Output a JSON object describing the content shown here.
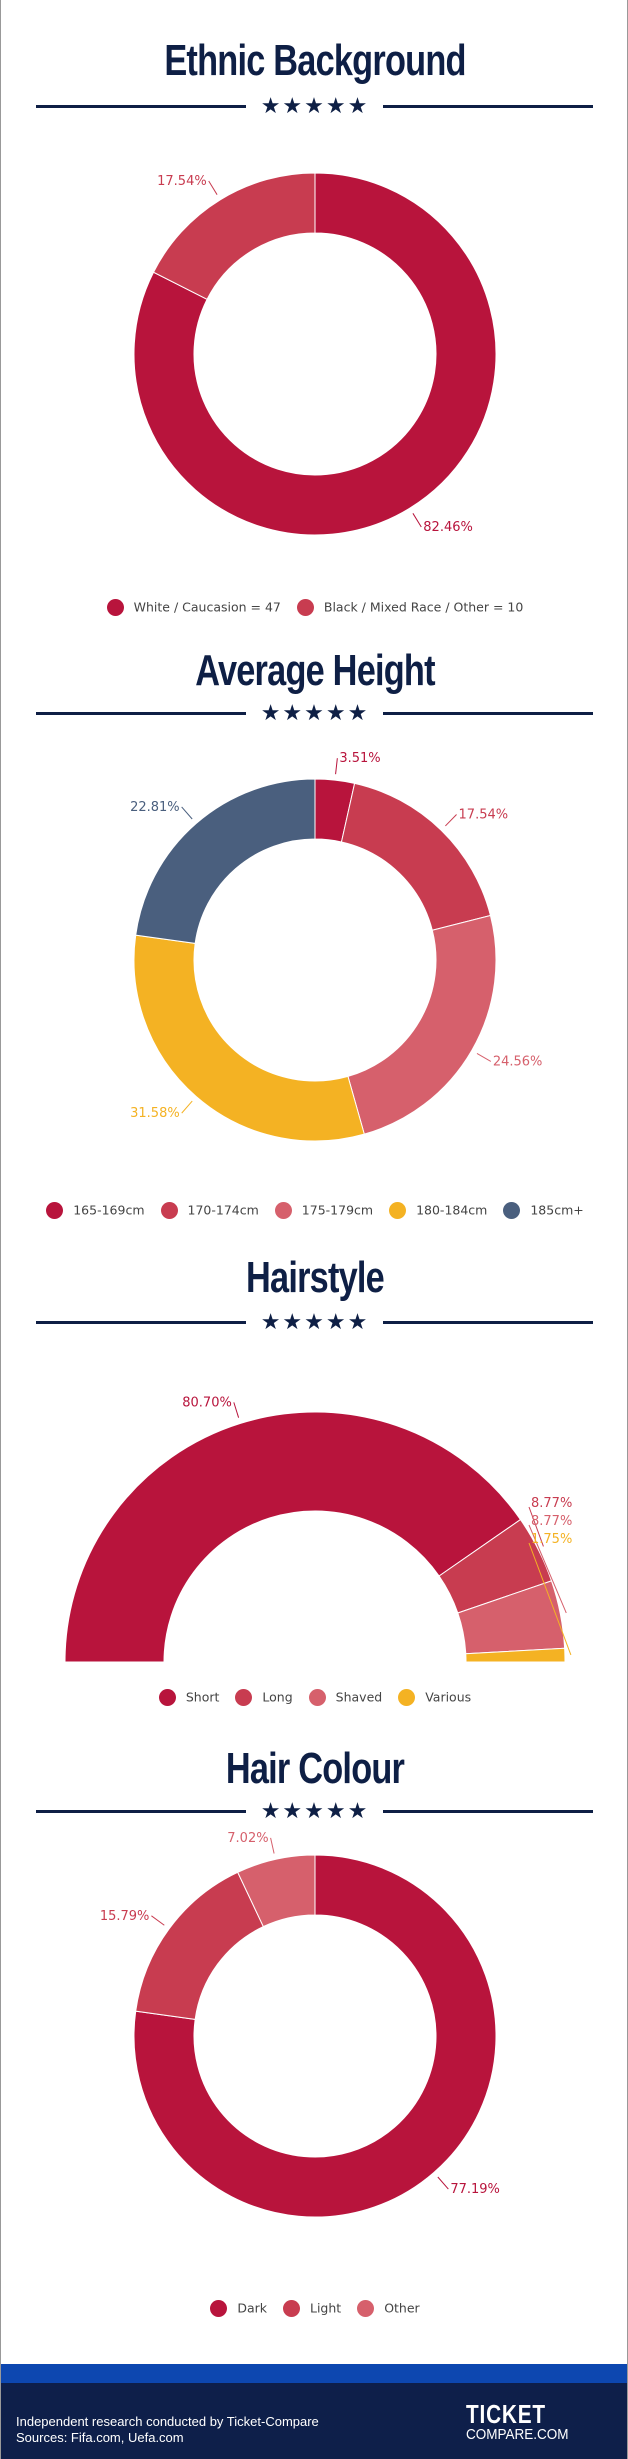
{
  "colors": {
    "navy": "#0e1f45",
    "dark_red": "#b8143c",
    "mid_red": "#c83c50",
    "light_red": "#d6606c",
    "yellow": "#f4b223",
    "slate": "#4a5f7e"
  },
  "divider_stars": "★★★★★",
  "chart_data": [
    {
      "type": "pie",
      "variant": "donut",
      "title": "Ethnic Background",
      "categories": [
        "White / Caucasion = 47",
        "Black / Mixed Race / Other = 10"
      ],
      "values": [
        82.46,
        17.54
      ],
      "labels": [
        "82.46%",
        "17.54%"
      ],
      "colors": [
        "#b8143c",
        "#c83c50"
      ],
      "legend": "bottom"
    },
    {
      "type": "pie",
      "variant": "donut",
      "title": "Average Height",
      "categories": [
        "165-169cm",
        "170-174cm",
        "175-179cm",
        "180-184cm",
        "185cm+"
      ],
      "values": [
        3.51,
        17.54,
        24.56,
        31.58,
        22.81
      ],
      "labels": [
        "3.51%",
        "17.54%",
        "24.56%",
        "31.58%",
        "22.81%"
      ],
      "colors": [
        "#b8143c",
        "#c83c50",
        "#d6606c",
        "#f4b223",
        "#4a5f7e"
      ],
      "legend": "bottom"
    },
    {
      "type": "pie",
      "variant": "semi-donut",
      "title": "Hairstyle",
      "categories": [
        "Short",
        "Long",
        "Shaved",
        "Various"
      ],
      "values": [
        80.7,
        8.77,
        8.77,
        1.75
      ],
      "labels": [
        "80.70%",
        "8.77%",
        "8.77%",
        "1.75%"
      ],
      "colors": [
        "#b8143c",
        "#c83c50",
        "#d6606c",
        "#f4b223"
      ],
      "legend": "bottom"
    },
    {
      "type": "pie",
      "variant": "donut",
      "title": "Hair Colour",
      "categories": [
        "Dark",
        "Light",
        "Other"
      ],
      "values": [
        77.19,
        15.79,
        7.02
      ],
      "labels": [
        "77.19%",
        "15.79%",
        "7.02%"
      ],
      "colors": [
        "#b8143c",
        "#c83c50",
        "#d6606c"
      ],
      "legend": "bottom"
    }
  ],
  "footer": {
    "line1": "Independent research conducted by Ticket-Compare",
    "line2": "Sources: Fifa.com, Uefa.com",
    "logo_line1": "TICKET",
    "logo_line2": "COMPARE.COM"
  }
}
